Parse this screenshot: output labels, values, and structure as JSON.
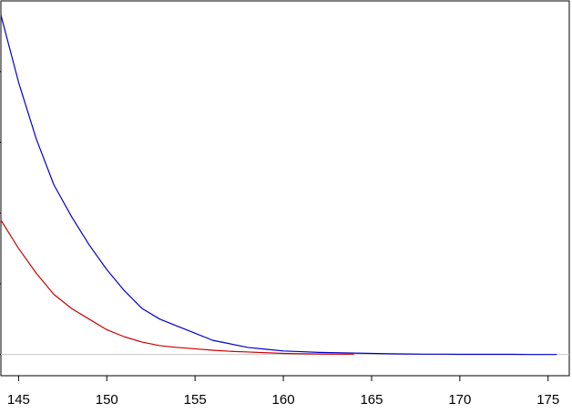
{
  "chart_data": {
    "type": "line",
    "title": "",
    "xlabel": "",
    "ylabel": "",
    "xlim": [
      144,
      176.2
    ],
    "ylim": [
      -0.06,
      1.0
    ],
    "xticks": [
      145,
      150,
      155,
      160,
      165,
      170,
      175
    ],
    "xtick_labels": [
      "145",
      "150",
      "155",
      "160",
      "165",
      "170",
      "175"
    ],
    "yticks": [
      0,
      0.2,
      0.4,
      0.6,
      0.8
    ],
    "ytick_labels": [
      "",
      "",
      "",
      "",
      ""
    ],
    "grid": false,
    "legend": "none",
    "baseline": {
      "y": 0,
      "color": "#c8c8c8"
    },
    "series": [
      {
        "color": "#0000cc",
        "x": [
          144,
          145,
          146,
          147,
          148,
          149,
          150,
          151,
          152,
          153,
          154,
          155,
          156,
          157,
          158,
          159,
          160,
          161,
          162,
          163,
          164,
          165,
          166,
          167,
          168,
          169,
          170,
          171,
          172,
          173,
          174,
          175,
          175.5
        ],
        "y": [
          0.96,
          0.77,
          0.61,
          0.48,
          0.39,
          0.31,
          0.24,
          0.18,
          0.13,
          0.1,
          0.08,
          0.06,
          0.04,
          0.03,
          0.02,
          0.015,
          0.01,
          0.008,
          0.006,
          0.005,
          0.004,
          0.003,
          0.002,
          0.0015,
          0.001,
          0.001,
          0.0005,
          0.0005,
          0.0005,
          0.0005,
          0.0,
          0.0,
          0.0
        ]
      },
      {
        "color": "#cc0000",
        "x": [
          144,
          145,
          146,
          147,
          148,
          149,
          150,
          151,
          152,
          153,
          154,
          155,
          156,
          157,
          158,
          159,
          160,
          161,
          162,
          163,
          164
        ],
        "y": [
          0.38,
          0.3,
          0.23,
          0.17,
          0.13,
          0.1,
          0.07,
          0.05,
          0.035,
          0.025,
          0.02,
          0.016,
          0.012,
          0.009,
          0.007,
          0.005,
          0.003,
          0.002,
          0.0015,
          0.001,
          0.001
        ]
      }
    ]
  }
}
